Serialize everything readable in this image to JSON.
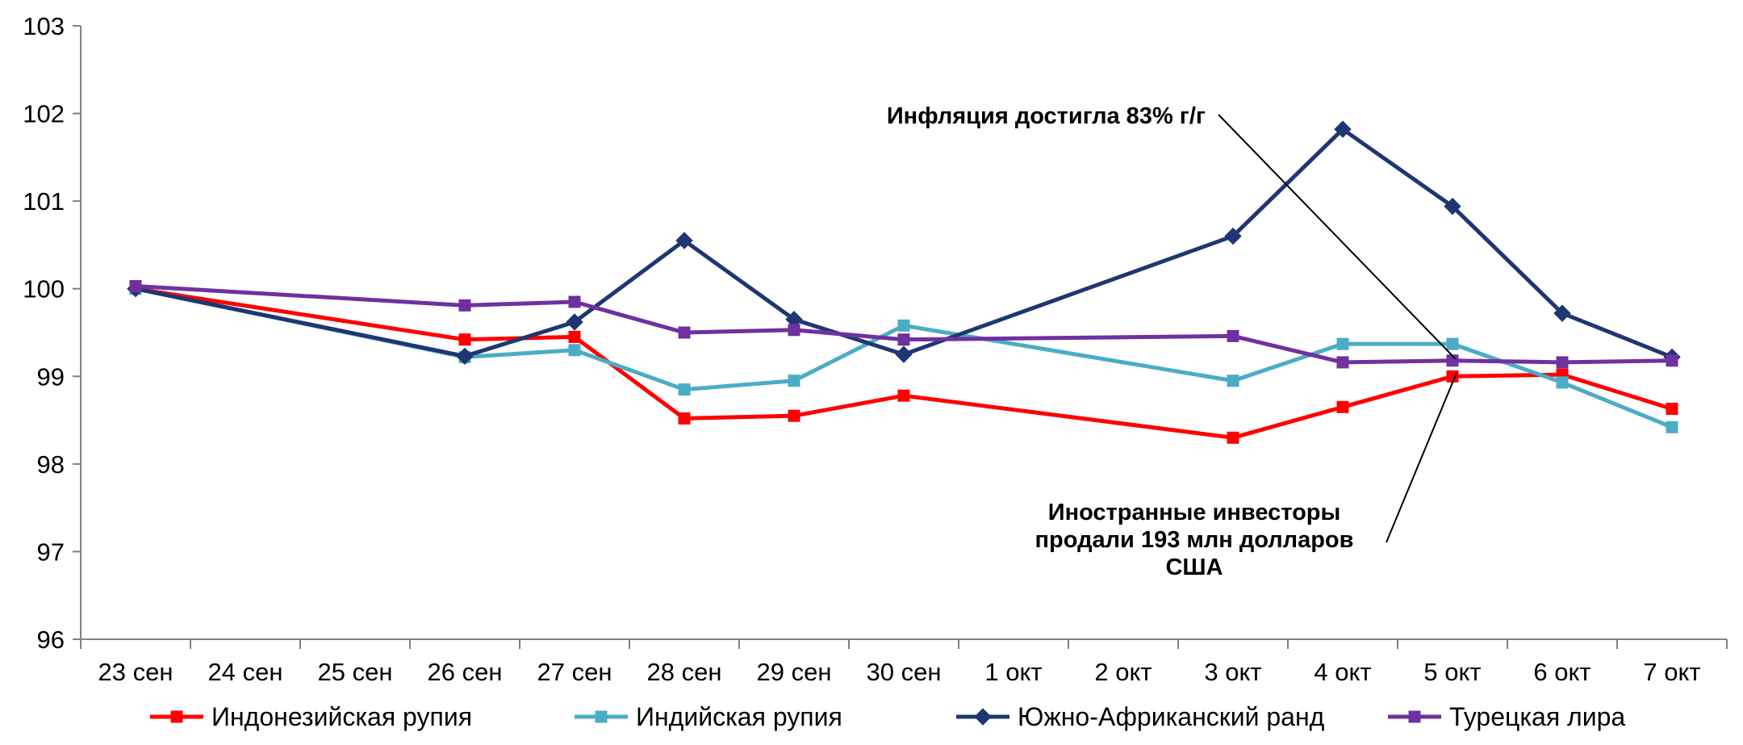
{
  "chart_data": {
    "type": "line",
    "title": "",
    "xlabel": "",
    "ylabel": "",
    "ylim": [
      96,
      103
    ],
    "yticks": [
      96,
      97,
      98,
      99,
      100,
      101,
      102,
      103
    ],
    "categories": [
      "23 сен",
      "24 сен",
      "25 сен",
      "26 сен",
      "27 сен",
      "28 сен",
      "29 сен",
      "30 сен",
      "1 окт",
      "2 окт",
      "3 окт",
      "4 окт",
      "5 окт",
      "6 окт",
      "7 окт"
    ],
    "grid": false,
    "legend_position": "bottom",
    "series": [
      {
        "name": "Индонезийская рупия",
        "color": "#ff0000",
        "marker": "square",
        "values": [
          100.0,
          null,
          null,
          99.42,
          99.45,
          98.52,
          98.55,
          98.78,
          null,
          null,
          98.3,
          98.65,
          99.0,
          99.02,
          98.63
        ]
      },
      {
        "name": "Индийская рупия",
        "color": "#4bacc6",
        "marker": "square",
        "values": [
          100.0,
          null,
          null,
          99.22,
          99.3,
          98.85,
          98.95,
          99.58,
          null,
          null,
          98.95,
          99.37,
          99.37,
          98.93,
          98.42
        ]
      },
      {
        "name": "Южно-Африканский ранд",
        "color": "#1f3672",
        "marker": "diamond",
        "values": [
          100.0,
          null,
          null,
          99.23,
          99.62,
          100.55,
          99.65,
          99.25,
          null,
          null,
          100.6,
          101.82,
          100.94,
          99.72,
          99.22
        ]
      },
      {
        "name": "Турецкая лира",
        "color": "#7030a0",
        "marker": "square",
        "values": [
          100.03,
          null,
          null,
          99.81,
          99.85,
          99.5,
          99.53,
          99.42,
          null,
          null,
          99.46,
          99.16,
          99.18,
          99.16,
          99.18
        ]
      }
    ],
    "annotations": [
      {
        "text": [
          "Инфляция достигла 83% г/г"
        ],
        "points_to": {
          "category": "5 окт",
          "value": 99.2
        }
      },
      {
        "text": [
          "Иностранные инвесторы",
          "продали 193 млн долларов",
          "США"
        ],
        "points_to": {
          "category": "5 окт",
          "value": 99.0
        }
      }
    ]
  }
}
